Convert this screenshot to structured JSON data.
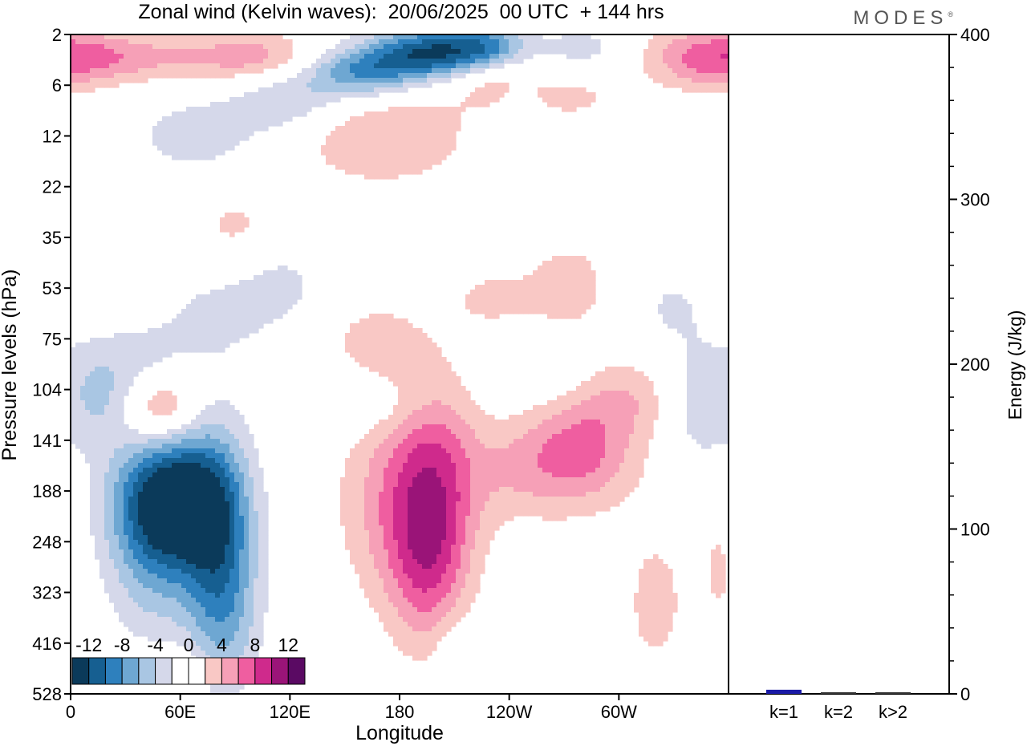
{
  "page": {
    "title": "Zonal wind (Kelvin waves):  20/06/2025  00 UTC  + 144 hrs",
    "brand": "MODES",
    "brand_mark": "®"
  },
  "colors": {
    "neg": [
      "#0b3a5a",
      "#165f91",
      "#2e80bd",
      "#6ea7d2",
      "#a9c6e3",
      "#d5d8ea"
    ],
    "pos": [
      "#f9c8c5",
      "#f6a0b7",
      "#ef5ea0",
      "#cf2a8c",
      "#9a1478",
      "#5a0a63"
    ],
    "bar": "#1a1aa6",
    "axis": "#000000"
  },
  "chart_data": [
    {
      "type": "heatmap",
      "name": "hovmoller",
      "xlabel": "Longitude",
      "ylabel": "Pressure levels (hPa)",
      "x_ticks": [
        "0",
        "60E",
        "120E",
        "180",
        "120W",
        "60W"
      ],
      "y_ticks": [
        "2",
        "6",
        "12",
        "22",
        "35",
        "53",
        "75",
        "104",
        "141",
        "188",
        "248",
        "323",
        "416",
        "528"
      ],
      "grid": false,
      "colorbar": {
        "labels": [
          "-12",
          "-8",
          "-4",
          "0",
          "4",
          "8",
          "12"
        ],
        "levels": [
          -12,
          -10,
          -8,
          -6,
          -4,
          -2,
          0,
          2,
          4,
          6,
          8,
          10,
          12
        ],
        "placement": "bottom-left"
      },
      "features": [
        {
          "lon": 55,
          "lev": 9.2,
          "amp": -15,
          "wlon": 22,
          "wlev": 0.9
        },
        {
          "lon": 80,
          "lev": 9.8,
          "amp": -6,
          "wlon": 14,
          "wlev": 1.6
        },
        {
          "lon": 85,
          "lev": 11.3,
          "amp": -4.5,
          "wlon": 14,
          "wlev": 1.2
        },
        {
          "lon": 45,
          "lev": 10.7,
          "amp": -4,
          "wlon": 18,
          "wlev": 1.0
        },
        {
          "lon": 15,
          "lev": 7.2,
          "amp": -3.5,
          "wlon": 12,
          "wlev": 0.7
        },
        {
          "lon": 40,
          "lev": 6.6,
          "amp": -3,
          "wlon": 18,
          "wlev": 0.6
        },
        {
          "lon": 80,
          "lev": 5.5,
          "amp": -2.3,
          "wlon": 25,
          "wlev": 0.7
        },
        {
          "lon": 115,
          "lev": 4.9,
          "amp": -2.3,
          "wlon": 18,
          "wlev": 0.6
        },
        {
          "lon": 200,
          "lev": 0.35,
          "amp": -12,
          "wlon": 24,
          "wlev": 0.35
        },
        {
          "lon": 160,
          "lev": 0.75,
          "amp": -8,
          "wlon": 22,
          "wlev": 0.35
        },
        {
          "lon": 230,
          "lev": 0.2,
          "amp": -5,
          "wlon": 14,
          "wlev": 0.3
        },
        {
          "lon": 120,
          "lev": 1.3,
          "amp": -4,
          "wlon": 22,
          "wlev": 0.45
        },
        {
          "lon": 70,
          "lev": 2.0,
          "amp": -3,
          "wlon": 28,
          "wlev": 0.6
        },
        {
          "lon": 280,
          "lev": 0.3,
          "amp": -2.8,
          "wlon": 18,
          "wlev": 0.4
        },
        {
          "lon": 245,
          "lev": 1.6,
          "amp": -1.8,
          "wlon": 8,
          "wlev": 0.4
        },
        {
          "lon": 325,
          "lev": 5.5,
          "amp": -2.3,
          "wlon": 28,
          "wlev": 1.0
        },
        {
          "lon": 345,
          "lev": 7.5,
          "amp": -3,
          "wlon": 12,
          "wlev": 0.7
        },
        {
          "lon": 290,
          "lev": 6.7,
          "amp": -2,
          "wlon": 40,
          "wlev": 0.5
        },
        {
          "lon": 165,
          "lev": 7.3,
          "amp": -2,
          "wlon": 25,
          "wlev": 0.4
        },
        {
          "lon": 315,
          "lev": 13.2,
          "amp": -2,
          "wlon": 15,
          "wlev": 0.4
        },
        {
          "lon": 210,
          "lev": 12.3,
          "amp": -2,
          "wlon": 8,
          "wlev": 0.6
        },
        {
          "lon": 50,
          "lev": 7.3,
          "amp": 6,
          "wlon": 14,
          "wlev": 0.5
        },
        {
          "lon": 200,
          "lev": 8.8,
          "amp": 6.5,
          "wlon": 18,
          "wlev": 1.5
        },
        {
          "lon": 195,
          "lev": 10.5,
          "amp": 5,
          "wlon": 15,
          "wlev": 1.2
        },
        {
          "lon": 175,
          "lev": 9.2,
          "amp": 4,
          "wlon": 22,
          "wlev": 1.4
        },
        {
          "lon": 280,
          "lev": 8.2,
          "amp": 6.5,
          "wlon": 22,
          "wlev": 0.8
        },
        {
          "lon": 305,
          "lev": 6.9,
          "amp": 5,
          "wlon": 20,
          "wlev": 0.6
        },
        {
          "lon": 245,
          "lev": 8.6,
          "amp": 3,
          "wlon": 20,
          "wlev": 0.7
        },
        {
          "lon": 170,
          "lev": 2.0,
          "amp": 4,
          "wlon": 35,
          "wlev": 0.7
        },
        {
          "lon": 230,
          "lev": 0.9,
          "amp": 3,
          "wlon": 18,
          "wlev": 0.4
        },
        {
          "lon": 350,
          "lev": 0.45,
          "amp": 6.5,
          "wlon": 25,
          "wlev": 0.45
        },
        {
          "lon": 100,
          "lev": 0.45,
          "amp": 5,
          "wlon": 25,
          "wlev": 0.35
        },
        {
          "lon": 35,
          "lev": 0.45,
          "amp": 4,
          "wlon": 30,
          "wlev": 0.35
        },
        {
          "lon": 275,
          "lev": 5.0,
          "amp": 3.5,
          "wlon": 20,
          "wlev": 0.7
        },
        {
          "lon": 230,
          "lev": 5.2,
          "amp": 2.5,
          "wlon": 15,
          "wlev": 0.4
        },
        {
          "lon": 275,
          "lev": 1.2,
          "amp": 2.5,
          "wlon": 20,
          "wlev": 0.4
        },
        {
          "lon": 90,
          "lev": 3.8,
          "amp": 2.5,
          "wlon": 18,
          "wlev": 0.6
        },
        {
          "lon": 165,
          "lev": 6.0,
          "amp": 2.5,
          "wlon": 20,
          "wlev": 0.6
        },
        {
          "lon": 320,
          "lev": 11.2,
          "amp": 3,
          "wlon": 12,
          "wlev": 1.0
        },
        {
          "lon": 355,
          "lev": 10.5,
          "amp": 2.5,
          "wlon": 8,
          "wlev": 1.0
        },
        {
          "lon": 60,
          "lev": 12.6,
          "amp": 2.5,
          "wlon": 10,
          "wlev": 0.4
        }
      ]
    },
    {
      "type": "bar",
      "name": "energy",
      "categories": [
        "k=1",
        "k=2",
        "k>2"
      ],
      "values": [
        2.5,
        0.4,
        0.4
      ],
      "ylabel": "Energy (J/kg)",
      "ylim": [
        0,
        400
      ],
      "y_ticks": [
        "0",
        "100",
        "200",
        "300",
        "400"
      ]
    }
  ]
}
